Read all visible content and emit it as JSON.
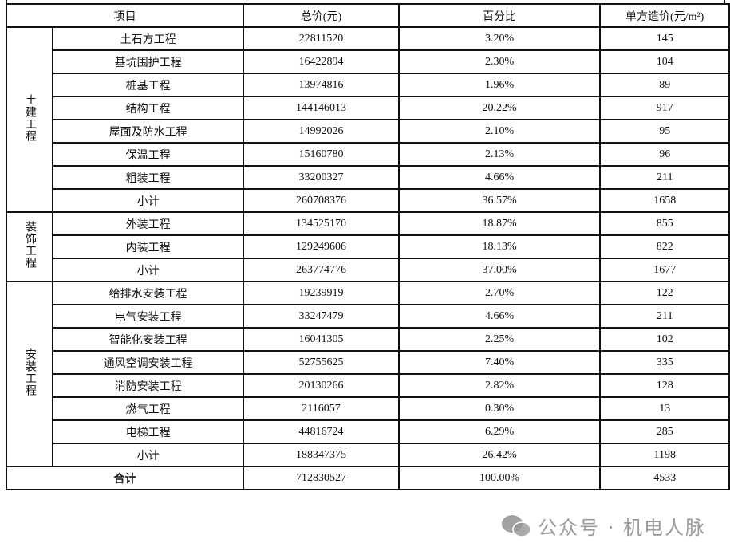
{
  "header": {
    "item": "项目",
    "total": "总价(元)",
    "percent": "百分比",
    "unit_price": "单方造价(元/m²)"
  },
  "groups": [
    {
      "name": "土建工程",
      "rows": [
        {
          "item": "土石方工程",
          "total": "22811520",
          "percent": "3.20%",
          "unit": "145"
        },
        {
          "item": "基坑围护工程",
          "total": "16422894",
          "percent": "2.30%",
          "unit": "104"
        },
        {
          "item": "桩基工程",
          "total": "13974816",
          "percent": "1.96%",
          "unit": "89"
        },
        {
          "item": "结构工程",
          "total": "144146013",
          "percent": "20.22%",
          "unit": "917"
        },
        {
          "item": "屋面及防水工程",
          "total": "14992026",
          "percent": "2.10%",
          "unit": "95"
        },
        {
          "item": "保温工程",
          "total": "15160780",
          "percent": "2.13%",
          "unit": "96"
        },
        {
          "item": "粗装工程",
          "total": "33200327",
          "percent": "4.66%",
          "unit": "211"
        },
        {
          "item": "小计",
          "total": "260708376",
          "percent": "36.57%",
          "unit": "1658"
        }
      ]
    },
    {
      "name": "装饰工程",
      "rows": [
        {
          "item": "外装工程",
          "total": "134525170",
          "percent": "18.87%",
          "unit": "855"
        },
        {
          "item": "内装工程",
          "total": "129249606",
          "percent": "18.13%",
          "unit": "822"
        },
        {
          "item": "小计",
          "total": "263774776",
          "percent": "37.00%",
          "unit": "1677"
        }
      ]
    },
    {
      "name": "安装工程",
      "rows": [
        {
          "item": "给排水安装工程",
          "total": "19239919",
          "percent": "2.70%",
          "unit": "122"
        },
        {
          "item": "电气安装工程",
          "total": "33247479",
          "percent": "4.66%",
          "unit": "211"
        },
        {
          "item": "智能化安装工程",
          "total": "16041305",
          "percent": "2.25%",
          "unit": "102"
        },
        {
          "item": "通风空调安装工程",
          "total": "52755625",
          "percent": "7.40%",
          "unit": "335"
        },
        {
          "item": "消防安装工程",
          "total": "20130266",
          "percent": "2.82%",
          "unit": "128"
        },
        {
          "item": "燃气工程",
          "total": "2116057",
          "percent": "0.30%",
          "unit": "13"
        },
        {
          "item": "电梯工程",
          "total": "44816724",
          "percent": "6.29%",
          "unit": "285"
        },
        {
          "item": "小计",
          "total": "188347375",
          "percent": "26.42%",
          "unit": "1198"
        }
      ]
    }
  ],
  "grand_total": {
    "item": "合计",
    "total": "712830527",
    "percent": "100.00%",
    "unit": "4533"
  },
  "watermark": {
    "text": "公众号 · 机电人脉",
    "icon": "wechat-icon"
  }
}
